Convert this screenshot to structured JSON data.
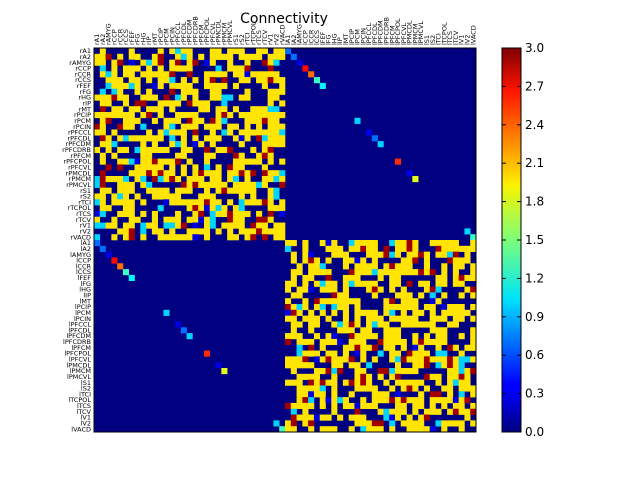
{
  "chart_data": {
    "type": "heatmap",
    "title": "Connectivity",
    "xlabel": "",
    "ylabel": "",
    "row_labels": [
      "rA1",
      "rA2",
      "rAMYG",
      "rCCP",
      "rCCR",
      "rCCS",
      "rFEF",
      "rFG",
      "rHG",
      "rIP",
      "rMT",
      "rPCIP",
      "rPCM",
      "rPCIN",
      "rPFCCL",
      "rPFCDL",
      "rPFCDM",
      "rPFCDRB",
      "rPFCM",
      "rPFCPOL",
      "rPFCVL",
      "rPMCDL",
      "rPMCM",
      "rPMCVL",
      "rS1",
      "rS2",
      "rTCI",
      "rTCPOL",
      "rTCS",
      "rTCV",
      "rV1",
      "rV2",
      "rVACD",
      "lA1",
      "lA2",
      "lAMYG",
      "lCCP",
      "lCCR",
      "lCCS",
      "lFEF",
      "lFG",
      "lHG",
      "lIP",
      "lMT",
      "lPCIP",
      "lPCM",
      "lPCIN",
      "lPFCCL",
      "lPFCDL",
      "lPFCDM",
      "lPFCDRB",
      "lPFCM",
      "lPFCPOL",
      "lPFCVL",
      "lPMCDL",
      "lPMCM",
      "lPMCVL",
      "lS1",
      "lS2",
      "lTCI",
      "lTCPOL",
      "lTCS",
      "lTCV",
      "lV1",
      "lV2",
      "lVACD"
    ],
    "col_labels": [
      "rA1",
      "rA2",
      "rAMYG",
      "rCCP",
      "rCCR",
      "rCCS",
      "rFEF",
      "rFG",
      "rHG",
      "rIP",
      "rMT",
      "rPCIP",
      "rPCM",
      "rPCIN",
      "rPFCCL",
      "rPFCDL",
      "rPFCDM",
      "rPFCDRB",
      "rPFCM",
      "rPFCPOL",
      "rPFCVL",
      "rPMCDL",
      "rPMCM",
      "rPMCVL",
      "rS1",
      "rS2",
      "rTCI",
      "rTCPOL",
      "rTCS",
      "rTCV",
      "rV1",
      "rV2",
      "rVACD",
      "lA1",
      "lA2",
      "lAMYG",
      "lCCP",
      "lCCR",
      "lCCS",
      "lFEF",
      "lFG",
      "lHG",
      "lIP",
      "lMT",
      "lPCIP",
      "lPCM",
      "lPCIN",
      "lPFCCL",
      "lPFCDL",
      "lPFCDM",
      "lPFCDRB",
      "lPFCM",
      "lPFCPOL",
      "lPFCVL",
      "lPMCDL",
      "lPMCM",
      "lPMCVL",
      "lS1",
      "lS2",
      "lTCI",
      "lTCPOL",
      "lTCS",
      "lTCV",
      "lV1",
      "lV2",
      "lVACD"
    ],
    "value_range": [
      0.0,
      3.0
    ],
    "colormap": "jet",
    "colorbar_ticks": [
      "0.0",
      "0.3",
      "0.6",
      "0.9",
      "1.2",
      "1.5",
      "1.8",
      "2.1",
      "2.4",
      "2.7",
      "3.0"
    ],
    "hemisphere_size": 33,
    "cross_hemisphere_diagonal": [
      0.7,
      0.7,
      0.3,
      2.6,
      2.3,
      1.3,
      1.1,
      0.0,
      0.0,
      0.0,
      0.0,
      0.0,
      1.0,
      0.0,
      0.3,
      0.7,
      1.0,
      0.0,
      0.0,
      2.5,
      0.0,
      0.3,
      1.8,
      0.0,
      0.0,
      0.0,
      0.0,
      0.0,
      0.0,
      0.0,
      0.0,
      1.0,
      1.3
    ],
    "within_hemisphere_pattern": "dense blocks of values mostly 1.9-2.0 (yellow) with scattered 0.3 (blue), 1.0 (cyan), 2.9 (dark red) entries; zero elsewhere"
  }
}
